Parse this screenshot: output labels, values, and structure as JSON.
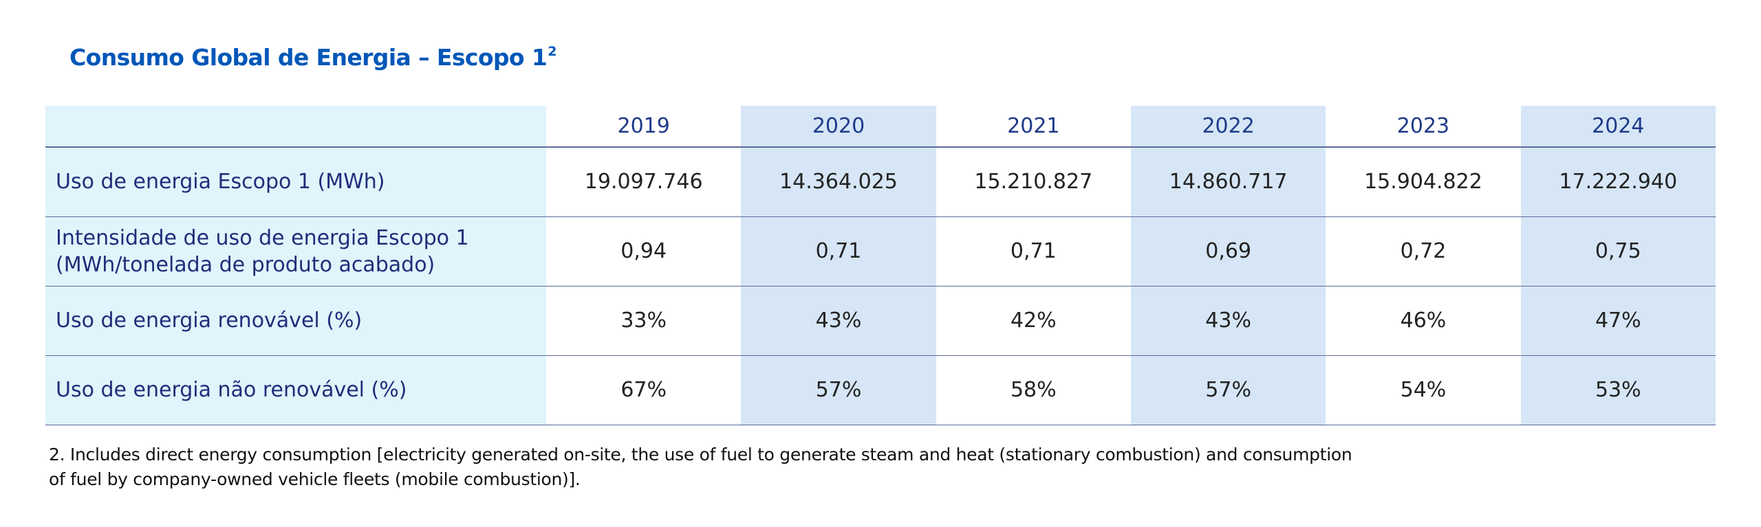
{
  "title": {
    "text": "Consumo Global de Energia – Escopo 1",
    "superscript": "2"
  },
  "table": {
    "years": [
      "2019",
      "2020",
      "2021",
      "2022",
      "2023",
      "2024"
    ],
    "rows": [
      {
        "label_lines": [
          "Uso de energia Escopo 1 (MWh)"
        ],
        "values": [
          "19.097.746",
          "14.364.025",
          "15.210.827",
          "14.860.717",
          "15.904.822",
          "17.222.940"
        ]
      },
      {
        "label_lines": [
          "Intensidade de uso de energia Escopo 1",
          "(MWh/tonelada de produto acabado)"
        ],
        "values": [
          "0,94",
          "0,71",
          "0,71",
          "0,69",
          "0,72",
          "0,75"
        ]
      },
      {
        "label_lines": [
          "Uso de energia renovável (%)"
        ],
        "values": [
          "33%",
          "43%",
          "42%",
          "43%",
          "46%",
          "47%"
        ]
      },
      {
        "label_lines": [
          "Uso de energia não renovável (%)"
        ],
        "values": [
          "67%",
          "57%",
          "58%",
          "57%",
          "54%",
          "53%"
        ]
      }
    ]
  },
  "footnote": {
    "lines": [
      "2. Includes direct energy consumption [electricity generated on-site, the use of fuel to generate steam and heat (stationary combustion) and consumption",
      "of fuel by company-owned vehicle fleets (mobile combustion)]."
    ]
  },
  "colors": {
    "title": "#0057b8",
    "label_column_bg": "#e0f4fb",
    "alternate_column_bg": "#d6e6f6",
    "row_rule": "#5b6a9d",
    "header_text": "#1f3a8a",
    "label_text": "#1f2d7a"
  }
}
